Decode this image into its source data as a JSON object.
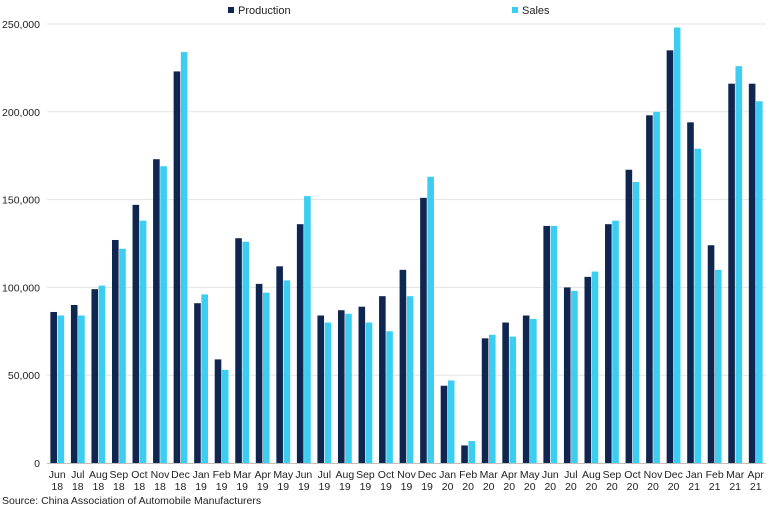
{
  "chart_data": {
    "type": "bar",
    "categories": [
      [
        "Jun",
        "18"
      ],
      [
        "Jul",
        "18"
      ],
      [
        "Aug",
        "18"
      ],
      [
        "Sep",
        "18"
      ],
      [
        "Oct",
        "18"
      ],
      [
        "Nov",
        "18"
      ],
      [
        "Dec",
        "18"
      ],
      [
        "Jan",
        "19"
      ],
      [
        "Feb",
        "19"
      ],
      [
        "Mar",
        "19"
      ],
      [
        "Apr",
        "19"
      ],
      [
        "May",
        "19"
      ],
      [
        "Jun",
        "19"
      ],
      [
        "Jul",
        "19"
      ],
      [
        "Aug",
        "19"
      ],
      [
        "Sep",
        "19"
      ],
      [
        "Oct",
        "19"
      ],
      [
        "Nov",
        "19"
      ],
      [
        "Dec",
        "19"
      ],
      [
        "Jan",
        "20"
      ],
      [
        "Feb",
        "20"
      ],
      [
        "Mar",
        "20"
      ],
      [
        "Apr",
        "20"
      ],
      [
        "May",
        "20"
      ],
      [
        "Jun",
        "20"
      ],
      [
        "Jul",
        "20"
      ],
      [
        "Aug",
        "20"
      ],
      [
        "Sep",
        "20"
      ],
      [
        "Oct",
        "20"
      ],
      [
        "Nov",
        "20"
      ],
      [
        "Dec",
        "20"
      ],
      [
        "Jan",
        "21"
      ],
      [
        "Feb",
        "21"
      ],
      [
        "Mar",
        "21"
      ],
      [
        "Apr",
        "21"
      ]
    ],
    "series": [
      {
        "name": "Production",
        "color": "#0f2650",
        "values": [
          86000,
          90000,
          99000,
          127000,
          147000,
          173000,
          223000,
          91000,
          59000,
          128000,
          102000,
          112000,
          136000,
          84000,
          87000,
          89000,
          95000,
          110000,
          151000,
          44000,
          10000,
          71000,
          80000,
          84000,
          135000,
          100000,
          106000,
          136000,
          167000,
          198000,
          235000,
          194000,
          124000,
          216000,
          216000
        ]
      },
      {
        "name": "Sales",
        "color": "#3ccdf0",
        "values": [
          84000,
          84000,
          101000,
          122000,
          138000,
          169000,
          234000,
          96000,
          53000,
          126000,
          97000,
          104000,
          152000,
          80000,
          85000,
          80000,
          75000,
          95000,
          163000,
          47000,
          12500,
          73000,
          72000,
          82000,
          135000,
          98000,
          109000,
          138000,
          160000,
          200000,
          248000,
          179000,
          110000,
          226000,
          206000
        ]
      }
    ],
    "ylim": [
      0,
      250000
    ],
    "yticks": [
      0,
      50000,
      100000,
      150000,
      200000,
      250000
    ],
    "grid": true,
    "legend_position": "top",
    "source": "Source: China Association of Automobile Manufacturers"
  }
}
